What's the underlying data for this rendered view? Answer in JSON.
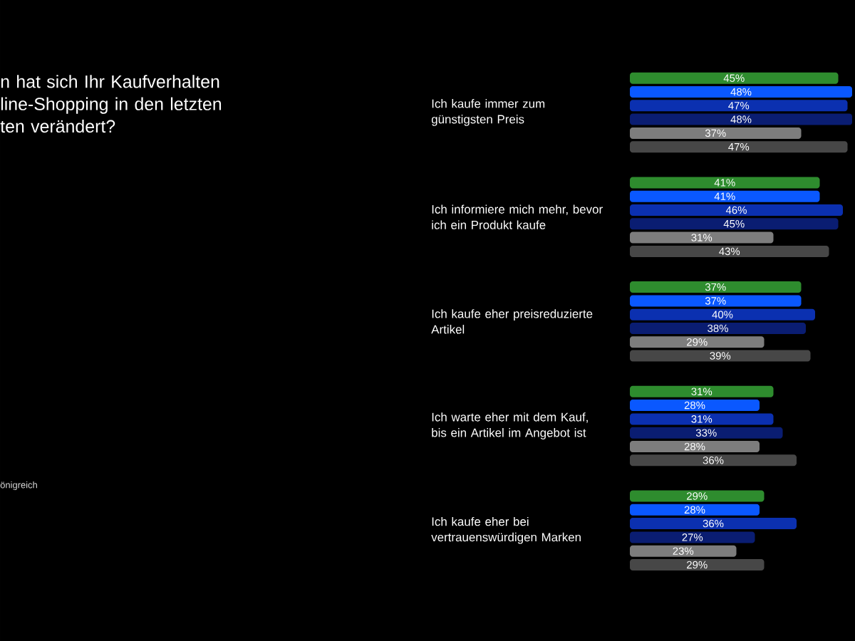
{
  "chart_data": {
    "type": "bar",
    "orientation": "horizontal",
    "title": "n hat sich Ihr Kaufverhalten line-Shopping in den letzten ten verändert?",
    "categories": [
      "Ich kaufe immer zum günstigsten Preis",
      "Ich informiere mich mehr, bevor ich ein Produkt kaufe",
      "Ich kaufe eher preisreduzierte Artikel",
      "Ich warte eher mit dem Kauf, bis ein Artikel im Angebot ist",
      "Ich kaufe eher bei vertrauenswürdigen Marken"
    ],
    "series": [
      {
        "color": "#2e8c2e",
        "values": [
          45,
          41,
          37,
          31,
          29
        ],
        "value_labels": [
          "45%",
          "41%",
          "37%",
          "31%",
          "29%"
        ]
      },
      {
        "color": "#0a58ff",
        "values": [
          48,
          41,
          37,
          28,
          28
        ],
        "value_labels": [
          "48%",
          "41%",
          "37%",
          "28%",
          "28%"
        ]
      },
      {
        "color": "#0b30b0",
        "values": [
          47,
          46,
          40,
          31,
          36
        ],
        "value_labels": [
          "47%",
          "46%",
          "40%",
          "31%",
          "36%"
        ]
      },
      {
        "color": "#0a1d72",
        "values": [
          48,
          45,
          38,
          33,
          27
        ],
        "value_labels": [
          "48%",
          "45%",
          "38%",
          "33%",
          "27%"
        ]
      },
      {
        "color": "#7d7d7d",
        "values": [
          37,
          31,
          29,
          28,
          23
        ],
        "value_labels": [
          "37%",
          "31%",
          "29%",
          "28%",
          "23%"
        ]
      },
      {
        "color": "#474747",
        "values": [
          47,
          43,
          39,
          36,
          29
        ],
        "value_labels": [
          "47%",
          "43%",
          "39%",
          "36%",
          "29%"
        ]
      }
    ],
    "tick_labels": "y",
    "annotations": [
      "önigreich"
    ]
  }
}
